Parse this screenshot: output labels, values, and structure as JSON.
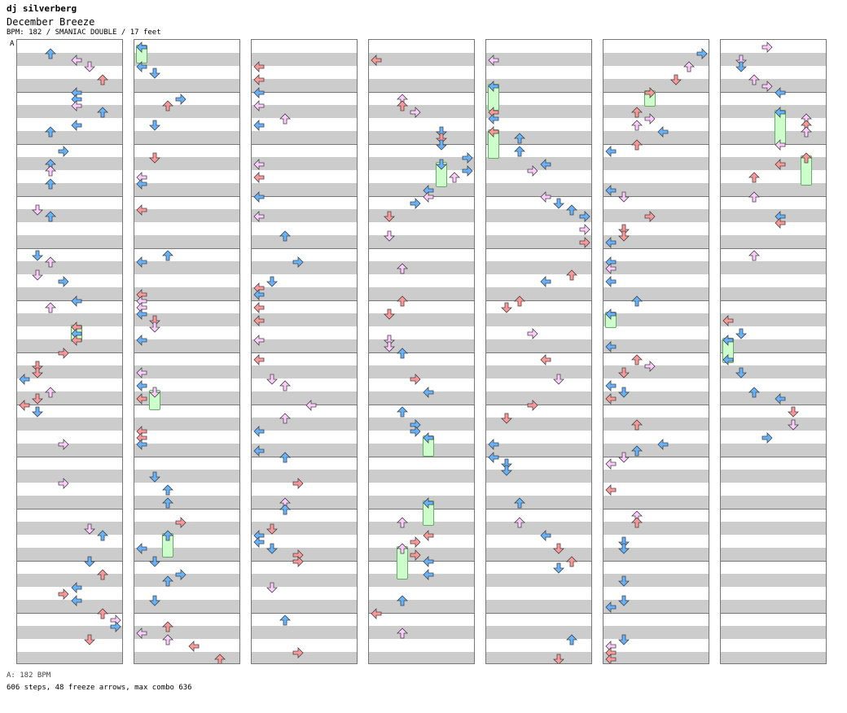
{
  "header": {
    "artist": "dj silverberg",
    "title": "December Breeze",
    "chart_info": "BPM: 182 / SMANIAC DOUBLE / 17 feet",
    "segment_label": "A"
  },
  "footer": {
    "bpm_line": "A: 182 BPM",
    "stats_line": "606 steps, 48 freeze arrows, max combo 636"
  },
  "colors": {
    "red_note": "#ff9999",
    "blue_note": "#66b3ff",
    "pink_note": "#ffccff",
    "green_note": "#33cc33",
    "freeze_fill": "#ccffcc"
  },
  "chart_data": {
    "type": "step-chart",
    "columns": 7,
    "measures_per_column": 12,
    "lanes": 8,
    "bpm": 182,
    "difficulty": "SMANIAC DOUBLE",
    "feet": 17,
    "steps": 606,
    "freeze_arrows": 48,
    "max_combo": 636
  }
}
